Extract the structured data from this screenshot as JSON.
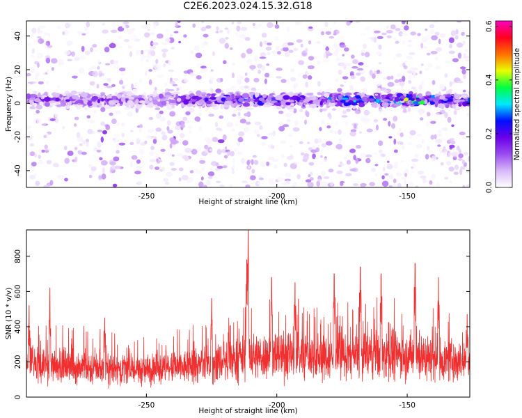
{
  "title": "C2E6.2023.024.15.32.G18",
  "chart_data": [
    {
      "type": "heatmap",
      "xlabel": "Height of straight line (km)",
      "ylabel": "Frequency (Hz)",
      "colorbar_label": "Normalized spectral amplitude",
      "xlim": [
        -296,
        -126
      ],
      "ylim": [
        -50,
        49
      ],
      "xticks": [
        -250,
        -200,
        -150
      ],
      "yticks": [
        -40,
        -20,
        0,
        20,
        40
      ],
      "colorbar_range": [
        0,
        0.62
      ],
      "colorbar_ticks": [
        0,
        0.2,
        0.4,
        0.6
      ],
      "colormap": [
        "#ffffff",
        "#d8b8f8",
        "#9a4cf0",
        "#6a00e8",
        "#0010ff",
        "#00e8ff",
        "#00ff40",
        "#e8ff00",
        "#ff7000",
        "#ff0020",
        "#ff00c0"
      ],
      "band_center_hz": 2,
      "band_halfwidth_hz": 4,
      "band_peak_amplitude": [
        {
          "x": -296,
          "v": 0.18
        },
        {
          "x": -270,
          "v": 0.16
        },
        {
          "x": -250,
          "v": 0.12
        },
        {
          "x": -230,
          "v": 0.2
        },
        {
          "x": -210,
          "v": 0.26
        },
        {
          "x": -200,
          "v": 0.24
        },
        {
          "x": -185,
          "v": 0.2
        },
        {
          "x": -175,
          "v": 0.3
        },
        {
          "x": -160,
          "v": 0.26
        },
        {
          "x": -147,
          "v": 0.42
        },
        {
          "x": -135,
          "v": 0.22
        },
        {
          "x": -126,
          "v": 0.26
        }
      ]
    },
    {
      "type": "line",
      "xlabel": "Height of straight line (km)",
      "ylabel": "SNR (10 * v/v)",
      "xlim": [
        -296,
        -126
      ],
      "ylim": [
        0,
        950
      ],
      "xticks": [
        -250,
        -200,
        -150
      ],
      "yticks": [
        0,
        200,
        400,
        600,
        800
      ],
      "color": "#f03030",
      "baseline": [
        {
          "x": -296,
          "y": 190
        },
        {
          "x": -270,
          "y": 165
        },
        {
          "x": -250,
          "y": 150
        },
        {
          "x": -230,
          "y": 175
        },
        {
          "x": -210,
          "y": 230
        },
        {
          "x": -195,
          "y": 240
        },
        {
          "x": -180,
          "y": 225
        },
        {
          "x": -165,
          "y": 235
        },
        {
          "x": -150,
          "y": 240
        },
        {
          "x": -126,
          "y": 190
        }
      ],
      "peaks": [
        {
          "x": -295,
          "y": 520
        },
        {
          "x": -287,
          "y": 620
        },
        {
          "x": -266,
          "y": 450
        },
        {
          "x": -225,
          "y": 560
        },
        {
          "x": -211,
          "y": 950
        },
        {
          "x": -211.5,
          "y": 780
        },
        {
          "x": -202,
          "y": 680
        },
        {
          "x": -193,
          "y": 650
        },
        {
          "x": -178,
          "y": 700
        },
        {
          "x": -168,
          "y": 740
        },
        {
          "x": -160,
          "y": 700
        },
        {
          "x": -147,
          "y": 760
        },
        {
          "x": -138,
          "y": 680
        },
        {
          "x": -127,
          "y": 470
        }
      ]
    }
  ]
}
